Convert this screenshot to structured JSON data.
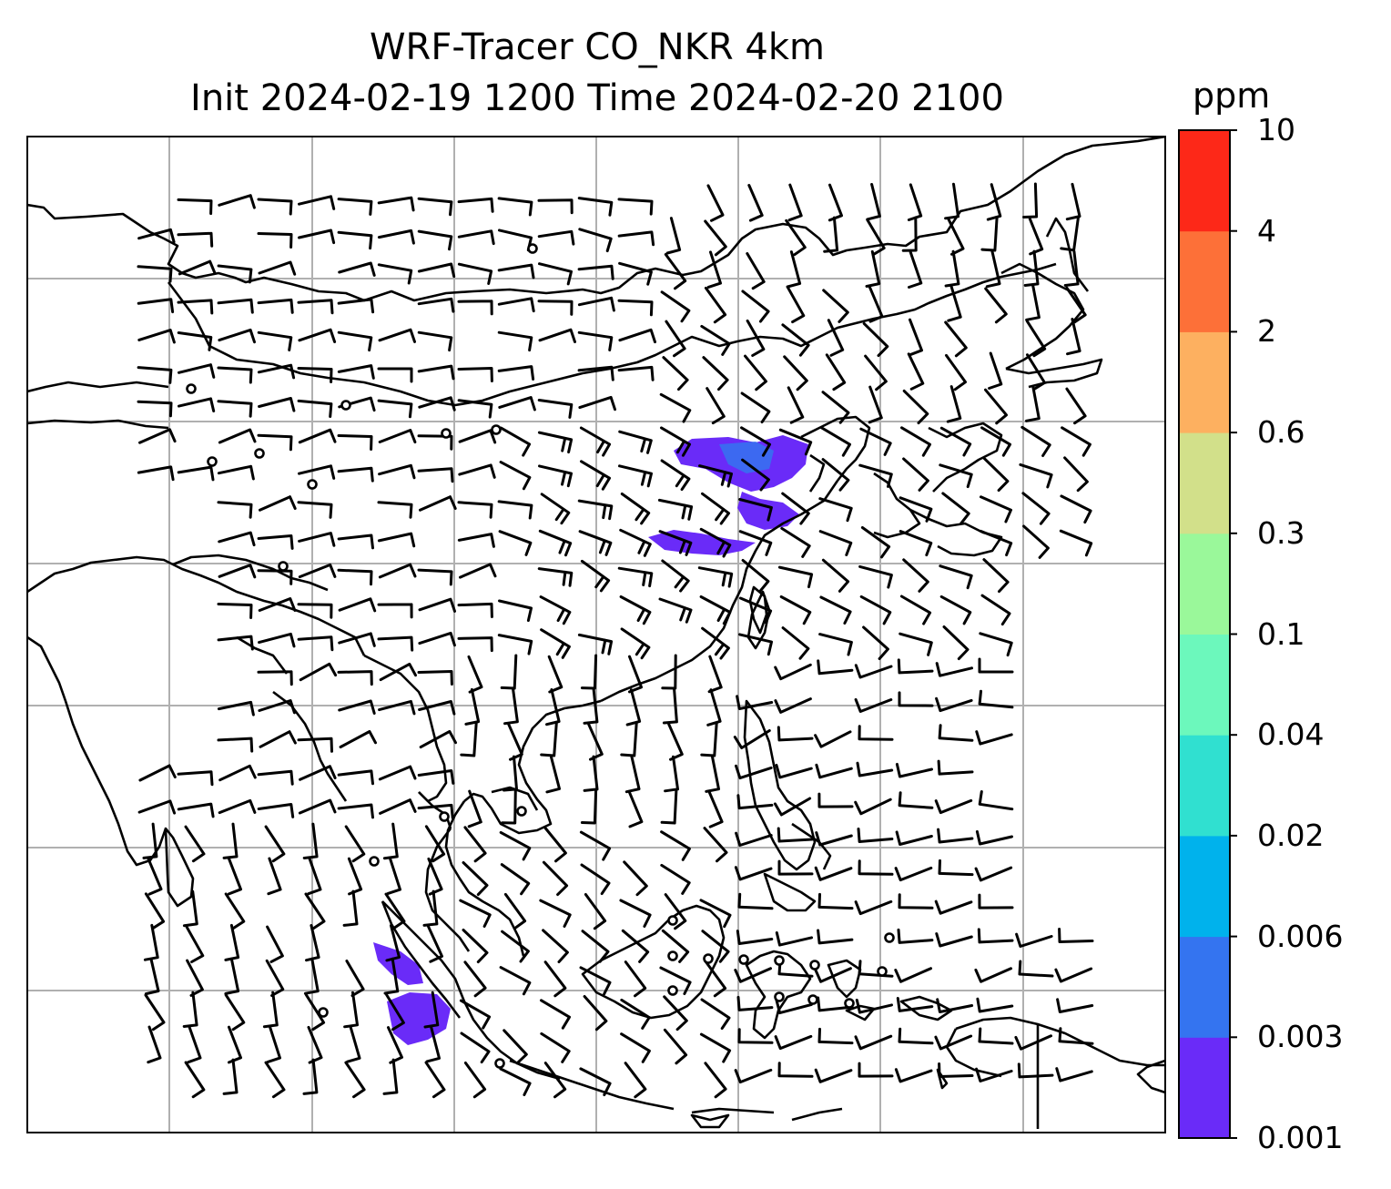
{
  "figure": {
    "title_line1": "WRF-Tracer CO_NKR 4km",
    "title_line2": "Init 2024-02-19 1200 Time 2024-02-20 2100"
  },
  "colorbar": {
    "unit": "ppm",
    "levels": [
      "0.001",
      "0.003",
      "0.006",
      "0.02",
      "0.04",
      "0.1",
      "0.3",
      "0.6",
      "2",
      "4",
      "10"
    ],
    "colors": [
      "#6a2bf8",
      "#3474f0",
      "#00b2ec",
      "#30e0d0",
      "#6cf8bc",
      "#9af89a",
      "#d2e08a",
      "#fdb060",
      "#fd7038",
      "#fd2818"
    ]
  },
  "map": {
    "gridlines": true,
    "wind_barbs": true,
    "calm_markers": true,
    "plume_color": "#6a2bf8"
  }
}
